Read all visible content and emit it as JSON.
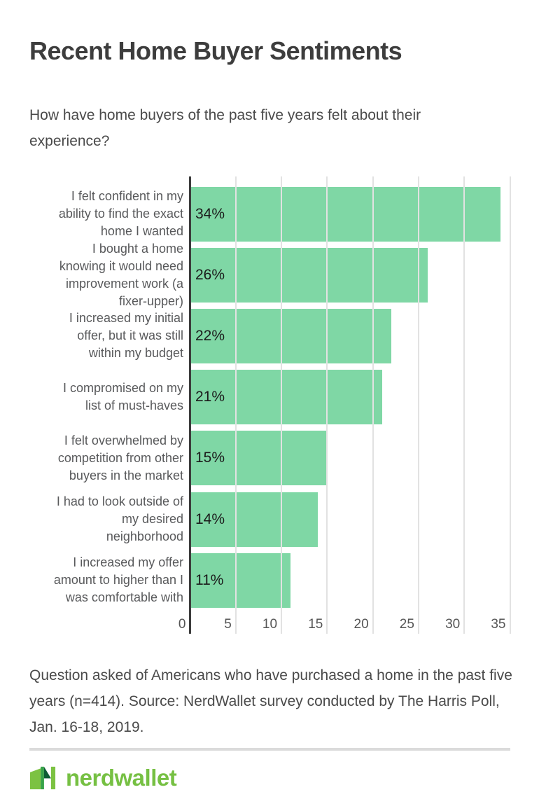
{
  "page": {
    "title": "Recent Home Buyer Sentiments",
    "subtitle": "How have home buyers of the past five years felt about their experience?",
    "footnote": "Question asked of Americans who have purchased a home in the past five years (n=414). Source: NerdWallet survey conducted by The Harris Poll, Jan. 16-18, 2019."
  },
  "chart_data": {
    "type": "bar",
    "orientation": "horizontal",
    "title": "Recent Home Buyer Sentiments",
    "categories": [
      "I felt confident in my\nability to find the exact\nhome I wanted",
      "I bought a home\nknowing it would need\nimprovement work (a\nfixer-upper)",
      "I increased my initial\noffer, but it was still\nwithin my budget",
      "I compromised on my\nlist of must-haves",
      "I felt overwhelmed by\ncompetition from other\nbuyers in the market",
      "I had to look outside of\nmy desired\nneighborhood",
      "I increased my offer\namount to higher than I\nwas comfortable with"
    ],
    "values": [
      34,
      26,
      22,
      21,
      15,
      14,
      11
    ],
    "value_labels": [
      "34%",
      "26%",
      "22%",
      "21%",
      "15%",
      "14%",
      "11%"
    ],
    "xlabel": "",
    "ylabel": "",
    "x_ticks": [
      0,
      5,
      10,
      15,
      20,
      25,
      30,
      35
    ],
    "xlim": [
      0,
      36.4
    ],
    "grid": "vertical",
    "legend": "none",
    "bar_color": "#7fd7a5"
  },
  "footer": {
    "brand_wordmark": "nerdwallet"
  },
  "colors": {
    "bar_green": "#7fd7a5",
    "axis_dark": "#3c3c3c",
    "gridline_gray": "#e2e2e2",
    "title_text": "#3d3d3d",
    "body_text": "#4a4a4a",
    "category_text": "#58595b",
    "tick_text": "#555555",
    "divider_gray": "#dbdbdb",
    "logo_light_green": "#7cc242",
    "logo_mid_green": "#36a348",
    "logo_dark_green": "#0d5c34",
    "wordmark_green": "#76c043"
  }
}
